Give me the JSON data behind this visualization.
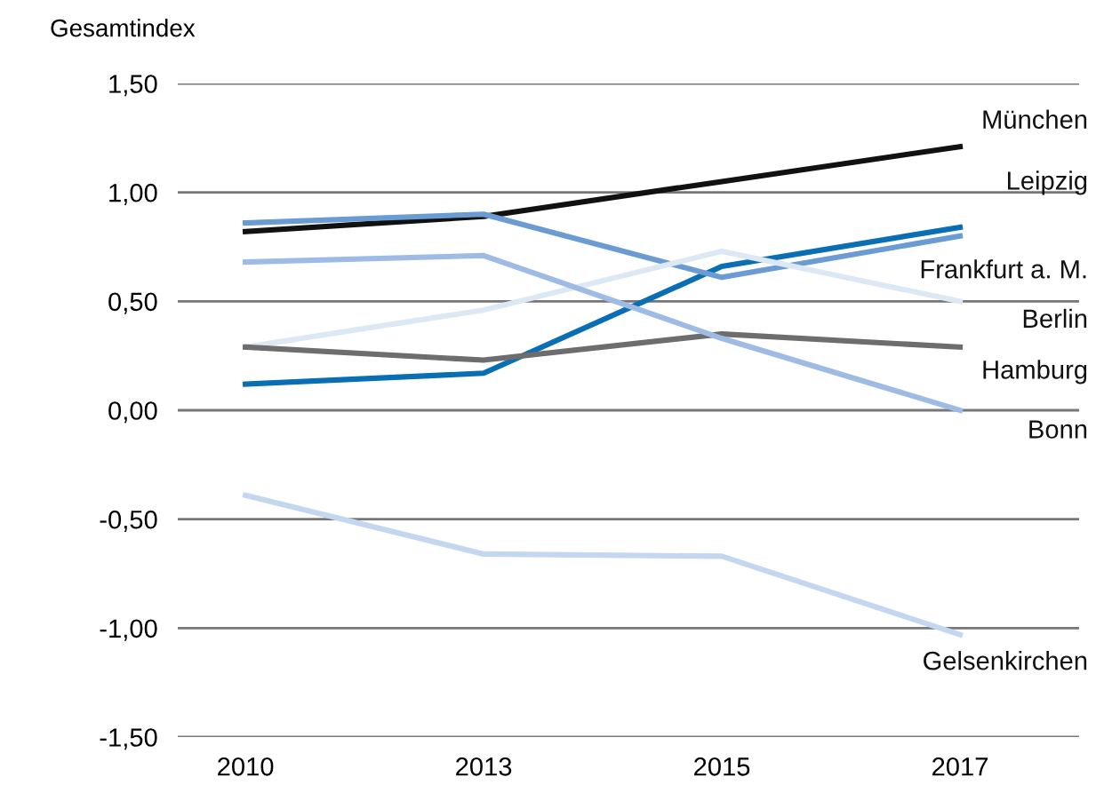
{
  "chart_data": {
    "type": "line",
    "ylabel": "Gesamtindex",
    "categories": [
      "2010",
      "2013",
      "2015",
      "2017"
    ],
    "ylim": [
      -1.5,
      1.5
    ],
    "yticks": [
      {
        "value": -1.5,
        "label": "-1,50"
      },
      {
        "value": -1.0,
        "label": "-1,00"
      },
      {
        "value": -0.5,
        "label": "-0,50"
      },
      {
        "value": 0,
        "label": "0,00"
      },
      {
        "value": 0.5,
        "label": "0,50"
      },
      {
        "value": 1.0,
        "label": "1,00"
      },
      {
        "value": 1.5,
        "label": "1,50"
      }
    ],
    "grid": "y",
    "legend": false,
    "series": [
      {
        "name": "München",
        "color": "#111111",
        "values": [
          0.82,
          0.89,
          1.05,
          1.21
        ]
      },
      {
        "name": "Leipzig",
        "color": "#0a6eb4",
        "values": [
          0.12,
          0.17,
          0.66,
          0.84
        ]
      },
      {
        "name": "Frankfurt a. M.",
        "color": "#6a9bd2",
        "values": [
          0.86,
          0.9,
          0.61,
          0.8
        ]
      },
      {
        "name": "Berlin",
        "color": "#dde8f5",
        "values": [
          0.29,
          0.46,
          0.73,
          0.5
        ]
      },
      {
        "name": "Hamburg",
        "color": "#6d6d6d",
        "values": [
          0.29,
          0.23,
          0.35,
          0.29
        ]
      },
      {
        "name": "Bonn",
        "color": "#9dbbe4",
        "values": [
          0.68,
          0.71,
          0.33,
          0.0
        ]
      },
      {
        "name": "Gelsenkirchen",
        "color": "#c5d6f0",
        "values": [
          -0.39,
          -0.66,
          -0.67,
          -1.03
        ]
      }
    ]
  }
}
